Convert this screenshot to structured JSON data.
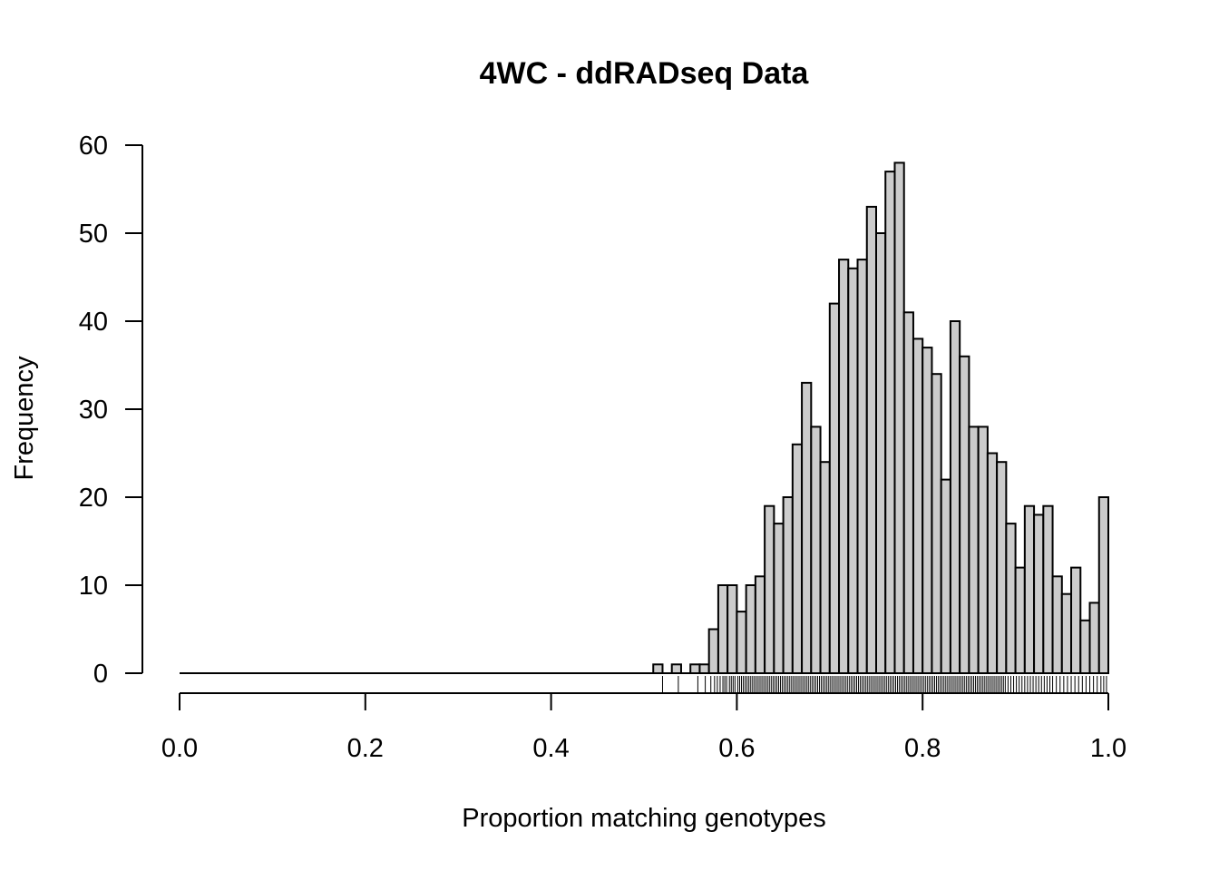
{
  "chart_data": {
    "type": "bar",
    "title": "4WC - ddRADseq Data",
    "xlabel": "Proportion matching genotypes",
    "ylabel": "Frequency",
    "xlim": [
      0.0,
      1.0
    ],
    "ylim": [
      0,
      60
    ],
    "x_ticks": [
      "0.0",
      "0.2",
      "0.4",
      "0.6",
      "0.8",
      "1.0"
    ],
    "y_ticks": [
      "0",
      "10",
      "20",
      "30",
      "40",
      "50",
      "60"
    ],
    "grid": false,
    "bar_color": "#cccccc",
    "bin_width": 0.01,
    "x": [
      0.51,
      0.52,
      0.53,
      0.54,
      0.55,
      0.56,
      0.57,
      0.58,
      0.59,
      0.6,
      0.61,
      0.62,
      0.63,
      0.64,
      0.65,
      0.66,
      0.67,
      0.68,
      0.69,
      0.7,
      0.71,
      0.72,
      0.73,
      0.74,
      0.75,
      0.76,
      0.77,
      0.78,
      0.79,
      0.8,
      0.81,
      0.82,
      0.83,
      0.84,
      0.85,
      0.86,
      0.87,
      0.88,
      0.89,
      0.9,
      0.91,
      0.92,
      0.93,
      0.94,
      0.95,
      0.96,
      0.97,
      0.98,
      0.99
    ],
    "values": [
      1,
      0,
      1,
      0,
      1,
      1,
      5,
      10,
      10,
      7,
      10,
      11,
      19,
      17,
      20,
      26,
      33,
      28,
      24,
      42,
      47,
      46,
      47,
      53,
      50,
      57,
      58,
      41,
      38,
      37,
      34,
      22,
      40,
      36,
      28,
      28,
      25,
      24,
      17,
      12,
      19,
      18,
      19,
      11,
      9,
      12,
      6,
      8,
      20
    ],
    "rug": [
      0.52,
      0.537,
      0.558,
      0.566,
      0.572,
      0.576,
      0.579,
      0.582,
      0.585,
      0.587,
      0.589,
      0.592,
      0.594,
      0.596,
      0.598,
      0.601,
      0.603,
      0.605,
      0.607,
      0.609,
      0.611,
      0.613,
      0.615,
      0.617,
      0.619,
      0.621,
      0.623,
      0.625,
      0.627,
      0.629,
      0.631,
      0.633,
      0.635,
      0.637,
      0.639,
      0.641,
      0.643,
      0.645,
      0.647,
      0.649,
      0.651,
      0.653,
      0.655,
      0.657,
      0.659,
      0.661,
      0.663,
      0.665,
      0.667,
      0.669,
      0.671,
      0.673,
      0.675,
      0.677,
      0.679,
      0.681,
      0.683,
      0.685,
      0.687,
      0.689,
      0.691,
      0.693,
      0.695,
      0.697,
      0.699,
      0.701,
      0.703,
      0.705,
      0.707,
      0.709,
      0.711,
      0.713,
      0.715,
      0.717,
      0.719,
      0.721,
      0.723,
      0.725,
      0.727,
      0.729,
      0.731,
      0.733,
      0.735,
      0.737,
      0.739,
      0.741,
      0.743,
      0.745,
      0.747,
      0.749,
      0.751,
      0.753,
      0.755,
      0.757,
      0.759,
      0.761,
      0.763,
      0.765,
      0.767,
      0.769,
      0.771,
      0.773,
      0.775,
      0.777,
      0.779,
      0.781,
      0.783,
      0.785,
      0.787,
      0.789,
      0.791,
      0.793,
      0.795,
      0.797,
      0.799,
      0.801,
      0.803,
      0.805,
      0.807,
      0.809,
      0.811,
      0.813,
      0.815,
      0.817,
      0.819,
      0.821,
      0.823,
      0.825,
      0.827,
      0.829,
      0.831,
      0.833,
      0.835,
      0.837,
      0.839,
      0.841,
      0.843,
      0.845,
      0.847,
      0.849,
      0.851,
      0.853,
      0.855,
      0.857,
      0.859,
      0.861,
      0.863,
      0.865,
      0.867,
      0.869,
      0.871,
      0.873,
      0.875,
      0.877,
      0.879,
      0.881,
      0.883,
      0.885,
      0.887,
      0.889,
      0.892,
      0.895,
      0.898,
      0.901,
      0.904,
      0.907,
      0.91,
      0.913,
      0.916,
      0.919,
      0.922,
      0.925,
      0.928,
      0.931,
      0.934,
      0.937,
      0.94,
      0.944,
      0.948,
      0.952,
      0.956,
      0.96,
      0.964,
      0.968,
      0.972,
      0.976,
      0.98,
      0.984,
      0.988,
      0.992,
      0.995,
      0.998
    ]
  }
}
